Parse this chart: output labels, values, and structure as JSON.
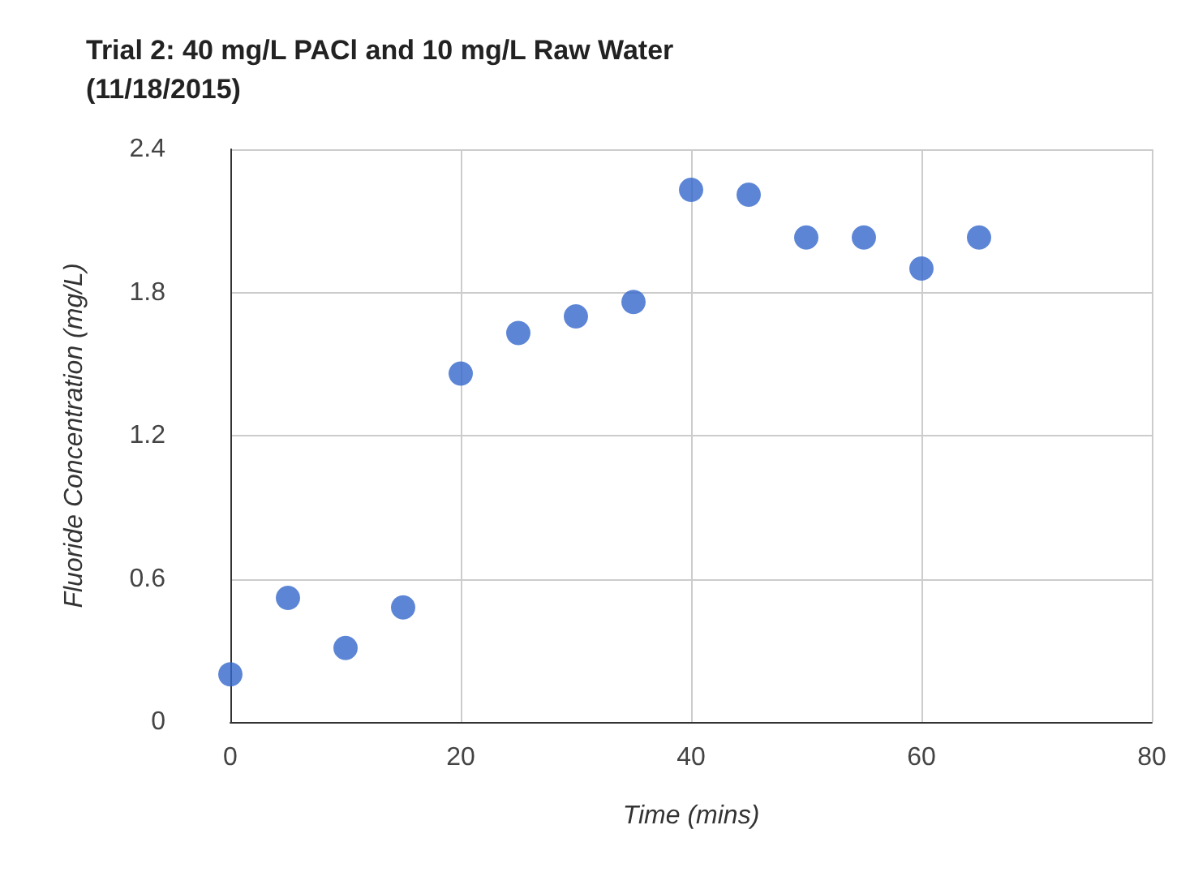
{
  "chart_data": {
    "type": "scatter",
    "title": "Trial 2: 40 mg/L PACl and 10 mg/L Raw Water\n(11/18/2015)",
    "xlabel": "Time (mins)",
    "ylabel": "Fluoride Concentration (mg/L)",
    "x": [
      0,
      5,
      10,
      15,
      20,
      25,
      30,
      35,
      40,
      45,
      50,
      55,
      60,
      65
    ],
    "series": [
      {
        "color": "#3366cc",
        "values": [
          0.2,
          0.52,
          0.31,
          0.48,
          1.46,
          1.63,
          1.7,
          1.76,
          2.23,
          2.21,
          2.03,
          2.03,
          1.9,
          2.03
        ]
      }
    ],
    "xlim": [
      0,
      80
    ],
    "xticks": [
      0,
      20,
      40,
      60,
      80
    ],
    "ylim": [
      0,
      2.4
    ],
    "yticks": [
      0,
      0.6,
      1.2,
      1.8,
      2.4
    ],
    "grid": true,
    "marker": "circle"
  }
}
